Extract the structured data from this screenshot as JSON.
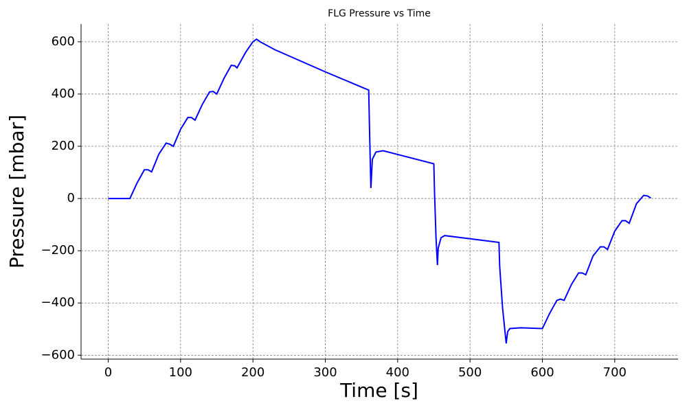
{
  "chart_data": {
    "type": "line",
    "title": "FLG Pressure vs Time",
    "xlabel": "Time [s]",
    "ylabel": "Pressure [mbar]",
    "color": "#0000ff",
    "grid": true,
    "xlim": [
      -37.5,
      787.5
    ],
    "xticks": [
      0,
      100,
      200,
      300,
      400,
      500,
      600,
      700
    ],
    "ylim": [
      -615,
      668
    ],
    "yticks": [
      {
        "value": -600,
        "label": "−600"
      },
      {
        "value": -400,
        "label": "−400"
      },
      {
        "value": -200,
        "label": "−200"
      },
      0,
      200,
      400,
      600
    ],
    "x": [
      0,
      30,
      40,
      50,
      55,
      60,
      70,
      80,
      85,
      90,
      100,
      110,
      115,
      120,
      130,
      140,
      145,
      150,
      160,
      170,
      175,
      178,
      190,
      200,
      205,
      210,
      230,
      300,
      360,
      361,
      363,
      365,
      370,
      380,
      450,
      451,
      453,
      455,
      456,
      460,
      465,
      540,
      541,
      545,
      550,
      552,
      555,
      570,
      600,
      610,
      620,
      625,
      630,
      640,
      650,
      655,
      660,
      670,
      680,
      685,
      690,
      700,
      710,
      715,
      720,
      730,
      740,
      745,
      750
    ],
    "values": [
      0,
      0,
      60,
      110,
      110,
      102,
      170,
      212,
      208,
      200,
      265,
      310,
      310,
      300,
      360,
      408,
      410,
      400,
      460,
      510,
      508,
      500,
      560,
      600,
      610,
      600,
      570,
      485,
      415,
      280,
      40,
      150,
      178,
      183,
      133,
      20,
      -150,
      -255,
      -190,
      -150,
      -142,
      -168,
      -260,
      -420,
      -555,
      -510,
      -498,
      -495,
      -498,
      -440,
      -390,
      -385,
      -390,
      -330,
      -285,
      -285,
      -292,
      -220,
      -185,
      -185,
      -195,
      -125,
      -85,
      -85,
      -95,
      -20,
      12,
      10,
      2
    ]
  }
}
